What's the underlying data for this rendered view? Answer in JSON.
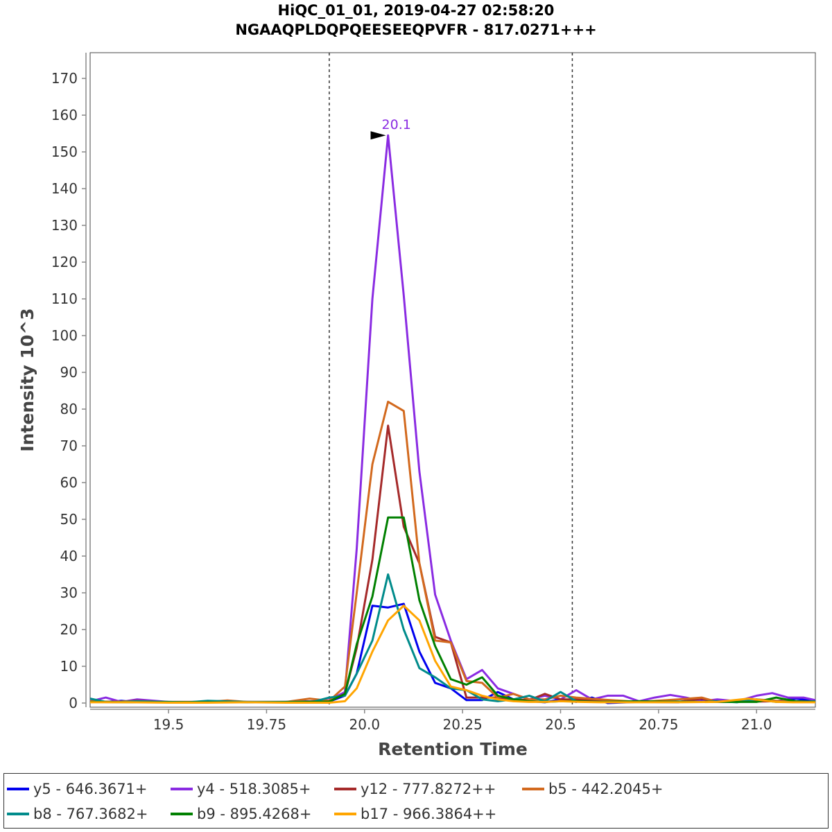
{
  "chart_data": {
    "type": "line",
    "title": "HiQC_01_01, 2019-04-27 02:58:20",
    "subtitle": "NGAAQPLDQPQEESEEQPVFR - 817.0271+++",
    "xlabel": "Retention Time",
    "ylabel": "Intensity 10^3",
    "xlim": [
      19.3,
      21.15
    ],
    "ylim": [
      0,
      177
    ],
    "x_ticks": [
      19.5,
      19.75,
      20.0,
      20.25,
      20.5,
      20.75,
      21.0
    ],
    "x_tick_labels": [
      "19.5",
      "19.75",
      "20.0",
      "20.25",
      "20.5",
      "20.75",
      "21.0"
    ],
    "y_ticks": [
      0,
      10,
      20,
      30,
      40,
      50,
      60,
      70,
      80,
      90,
      100,
      110,
      120,
      130,
      140,
      150,
      160,
      170
    ],
    "y_tick_labels": [
      "0",
      "10",
      "20",
      "30",
      "40",
      "50",
      "60",
      "70",
      "80",
      "90",
      "100",
      "110",
      "120",
      "130",
      "140",
      "150",
      "160",
      "170"
    ],
    "boundaries": [
      19.91,
      20.53
    ],
    "peak_annotation": {
      "x": 20.065,
      "y": 154.5,
      "label": "20.1",
      "color": "#8a2be2"
    },
    "series": [
      {
        "name": "y5 - 646.3671+",
        "color": "#0000ee",
        "x": [
          19.3,
          19.34,
          19.38,
          19.42,
          19.5,
          19.6,
          19.7,
          19.8,
          19.87,
          19.91,
          19.95,
          19.98,
          20.02,
          20.06,
          20.1,
          20.14,
          20.18,
          20.22,
          20.26,
          20.3,
          20.34,
          20.38,
          20.42,
          20.46,
          20.5,
          20.54,
          20.58,
          20.62,
          20.7,
          20.8,
          20.85,
          20.9,
          21.0,
          21.05,
          21.1,
          21.15
        ],
        "values": [
          0.5,
          0.3,
          0.6,
          0.2,
          0.2,
          0.3,
          0.3,
          0.2,
          0.3,
          0.4,
          2,
          8,
          26.5,
          26,
          27,
          14,
          5.5,
          4,
          0.8,
          0.8,
          3,
          1,
          0.5,
          0.2,
          1,
          0.3,
          1.5,
          0,
          0.3,
          0.2,
          1,
          0.3,
          0.5,
          0.5,
          1.2,
          0.5
        ]
      },
      {
        "name": "y4 - 518.3085+",
        "color": "#8a2be2",
        "x": [
          19.3,
          19.34,
          19.38,
          19.42,
          19.5,
          19.6,
          19.7,
          19.8,
          19.87,
          19.91,
          19.95,
          19.98,
          20.02,
          20.06,
          20.1,
          20.14,
          20.18,
          20.22,
          20.26,
          20.3,
          20.34,
          20.38,
          20.42,
          20.46,
          20.5,
          20.54,
          20.58,
          20.62,
          20.66,
          20.7,
          20.74,
          20.78,
          20.82,
          20.86,
          20.9,
          20.95,
          21.0,
          21.04,
          21.08,
          21.12,
          21.15
        ],
        "values": [
          0.5,
          1.5,
          0.3,
          1,
          0.3,
          0.3,
          0.3,
          0.3,
          0.5,
          0.8,
          3,
          42,
          110,
          154.5,
          111,
          63,
          29.5,
          17,
          6.5,
          9,
          4,
          2.5,
          1,
          2,
          1,
          3.5,
          1,
          2,
          2,
          0.5,
          1.5,
          2.2,
          1.5,
          0.5,
          1,
          0.5,
          2,
          2.7,
          1.5,
          1.5,
          0.8
        ]
      },
      {
        "name": "y12 - 777.8272++",
        "color": "#a52a2a",
        "x": [
          19.3,
          19.36,
          19.42,
          19.5,
          19.6,
          19.7,
          19.8,
          19.87,
          19.91,
          19.95,
          19.98,
          20.02,
          20.06,
          20.1,
          20.14,
          20.18,
          20.22,
          20.26,
          20.3,
          20.34,
          20.38,
          20.42,
          20.46,
          20.5,
          20.54,
          20.6,
          20.65,
          20.7,
          20.8,
          20.86,
          20.9,
          21.0,
          21.05,
          21.1,
          21.15
        ],
        "values": [
          0.5,
          0.3,
          0.6,
          0.2,
          0.3,
          0.2,
          0.3,
          0.5,
          0.6,
          2.5,
          15,
          39,
          75.5,
          48,
          38,
          18,
          16.5,
          1.5,
          1.5,
          1.5,
          1,
          0.8,
          2.5,
          1,
          1,
          0.5,
          0.3,
          0.4,
          0.3,
          1.2,
          0.3,
          0.4,
          0.5,
          0.3,
          0.3
        ]
      },
      {
        "name": "b5 - 442.2045+",
        "color": "#d2691e",
        "x": [
          19.3,
          19.35,
          19.42,
          19.5,
          19.6,
          19.65,
          19.7,
          19.8,
          19.86,
          19.91,
          19.95,
          19.98,
          20.02,
          20.06,
          20.1,
          20.14,
          20.18,
          20.22,
          20.26,
          20.3,
          20.34,
          20.38,
          20.42,
          20.46,
          20.5,
          20.54,
          20.6,
          20.7,
          20.8,
          20.86,
          20.9,
          21.0,
          21.05,
          21.1,
          21.15
        ],
        "values": [
          0.5,
          0.3,
          0.5,
          0.3,
          0.3,
          0.7,
          0.3,
          0.3,
          1.2,
          0.6,
          4.5,
          30,
          65,
          82,
          79.5,
          38,
          17,
          16.5,
          6,
          5.5,
          1.5,
          2.5,
          1,
          1,
          2,
          1.5,
          1,
          0.3,
          1,
          1.5,
          0.3,
          1,
          0.6,
          0.5,
          0.3
        ]
      },
      {
        "name": "b8 - 767.3682+",
        "color": "#008b8b",
        "x": [
          19.3,
          19.34,
          19.38,
          19.42,
          19.5,
          19.55,
          19.6,
          19.7,
          19.8,
          19.87,
          19.91,
          19.95,
          19.98,
          20.02,
          20.06,
          20.1,
          20.14,
          20.18,
          20.22,
          20.26,
          20.3,
          20.34,
          20.38,
          20.42,
          20.46,
          20.5,
          20.54,
          20.6,
          20.7,
          20.8,
          20.86,
          20.9,
          20.95,
          21.0,
          21.05,
          21.1,
          21.15
        ],
        "values": [
          1.2,
          0.3,
          0.3,
          0.5,
          0.3,
          0.2,
          0.6,
          0.3,
          0.3,
          0.4,
          1.5,
          2,
          8,
          17,
          35,
          20,
          9.5,
          7,
          4,
          3.5,
          1,
          0.5,
          1,
          2,
          0.5,
          3,
          0.5,
          0.3,
          0.3,
          0.4,
          0.3,
          0.5,
          0.2,
          1,
          0.3,
          0.3,
          0.5
        ]
      },
      {
        "name": "b9 - 895.4268+",
        "color": "#008000",
        "x": [
          19.3,
          19.4,
          19.5,
          19.6,
          19.7,
          19.8,
          19.87,
          19.91,
          19.95,
          19.98,
          20.02,
          20.06,
          20.1,
          20.14,
          20.18,
          20.22,
          20.26,
          20.3,
          20.34,
          20.38,
          20.42,
          20.46,
          20.5,
          20.54,
          20.6,
          20.7,
          20.8,
          20.9,
          21.0,
          21.05,
          21.1,
          21.15
        ],
        "values": [
          0.3,
          0.2,
          0.2,
          0.2,
          0.2,
          0.2,
          0.3,
          0.4,
          2.5,
          16,
          29,
          50.5,
          50.5,
          28,
          15.5,
          6.5,
          5,
          7,
          2,
          1,
          0.5,
          0.3,
          0.5,
          0.5,
          0.3,
          0.5,
          0.3,
          0.3,
          0.3,
          1.5,
          0.5,
          0.3
        ]
      },
      {
        "name": "b17 - 966.3864++",
        "color": "#ffa500",
        "x": [
          19.3,
          19.4,
          19.5,
          19.6,
          19.7,
          19.8,
          19.87,
          19.91,
          19.95,
          19.98,
          20.02,
          20.06,
          20.1,
          20.14,
          20.18,
          20.22,
          20.26,
          20.3,
          20.34,
          20.38,
          20.42,
          20.46,
          20.5,
          20.55,
          20.6,
          20.7,
          20.8,
          20.9,
          20.98,
          21.05,
          21.1,
          21.15
        ],
        "values": [
          0.2,
          0.2,
          0.1,
          0.1,
          0.2,
          0.1,
          0.1,
          0.1,
          0.5,
          4,
          14,
          22.5,
          26.5,
          22.5,
          11.5,
          4.5,
          3.5,
          2,
          1,
          0.5,
          0.3,
          0.3,
          0.5,
          0.3,
          0.2,
          0.2,
          0.2,
          0.3,
          1.2,
          0.3,
          0.2,
          0.2
        ]
      }
    ]
  }
}
